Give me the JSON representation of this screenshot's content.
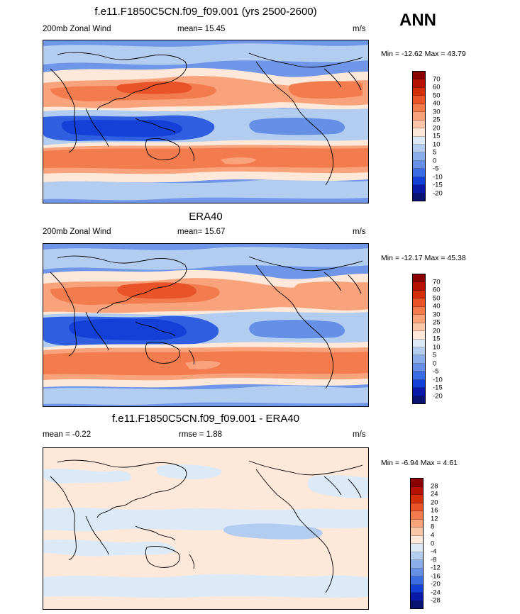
{
  "season_label": "ANN",
  "panels": [
    {
      "title": "f.e11.F1850C5CN.f09_f09.001 (yrs 2500-2600)",
      "left_label": "200mb Zonal Wind",
      "center_label": "mean=  15.45",
      "right_label": "m/s",
      "minmax": "Min = -12.62 Max =  43.79",
      "colorbar_labels": [
        "70",
        "60",
        "50",
        "40",
        "30",
        "25",
        "20",
        "15",
        "10",
        "5",
        "0",
        "-5",
        "-10",
        "-15",
        "-20"
      ],
      "colorbar_colors": [
        "#8a0000",
        "#b51200",
        "#d42f0b",
        "#e8532a",
        "#f37c4e",
        "#f9a37c",
        "#fcc7a8",
        "#fde8d9",
        "#dceaf8",
        "#b3cdf1",
        "#89aeea",
        "#6590e6",
        "#3b6ce3",
        "#1440d8",
        "#0a1aa8",
        "#07136e"
      ]
    },
    {
      "title": "ERA40",
      "left_label": "200mb Zonal Wind",
      "center_label": "mean=  15.67",
      "right_label": "m/s",
      "minmax": "Min = -12.17 Max =  45.38",
      "colorbar_labels": [
        "70",
        "60",
        "50",
        "40",
        "30",
        "25",
        "20",
        "15",
        "10",
        "5",
        "0",
        "-5",
        "-10",
        "-15",
        "-20"
      ],
      "colorbar_colors": [
        "#8a0000",
        "#b51200",
        "#d42f0b",
        "#e8532a",
        "#f37c4e",
        "#f9a37c",
        "#fcc7a8",
        "#fde8d9",
        "#dceaf8",
        "#b3cdf1",
        "#89aeea",
        "#6590e6",
        "#3b6ce3",
        "#1440d8",
        "#0a1aa8",
        "#07136e"
      ]
    },
    {
      "title": "f.e11.F1850C5CN.f09_f09.001 - ERA40",
      "left_label": "mean =  -0.22",
      "center_label": "rmse =   1.88",
      "right_label": "m/s",
      "minmax": "Min =  -6.94 Max =   4.61",
      "colorbar_labels": [
        "28",
        "24",
        "20",
        "16",
        "12",
        "8",
        "4",
        "0",
        "-4",
        "-8",
        "-12",
        "-16",
        "-20",
        "-24",
        "-28"
      ],
      "colorbar_colors": [
        "#8a0000",
        "#b51200",
        "#d42f0b",
        "#e8532a",
        "#f37c4e",
        "#f9a37c",
        "#fcc7a8",
        "#fde8d9",
        "#dceaf8",
        "#b3cdf1",
        "#89aeea",
        "#6590e6",
        "#3b6ce3",
        "#1440d8",
        "#0a1aa8",
        "#07136e"
      ]
    }
  ],
  "palette": {
    "ocean_blue_bg": "#6f96e8",
    "strong_blue": "#2f5ee0",
    "light_blue": "#b3cdf1",
    "pale": "#fde8d9",
    "salmon": "#f9a37c",
    "orange": "#f37c4e",
    "red_orange": "#e8532a",
    "diff_bg": "#fde8d9",
    "diff_blue": "#dceaf8",
    "diff_blue2": "#b3cdf1"
  }
}
